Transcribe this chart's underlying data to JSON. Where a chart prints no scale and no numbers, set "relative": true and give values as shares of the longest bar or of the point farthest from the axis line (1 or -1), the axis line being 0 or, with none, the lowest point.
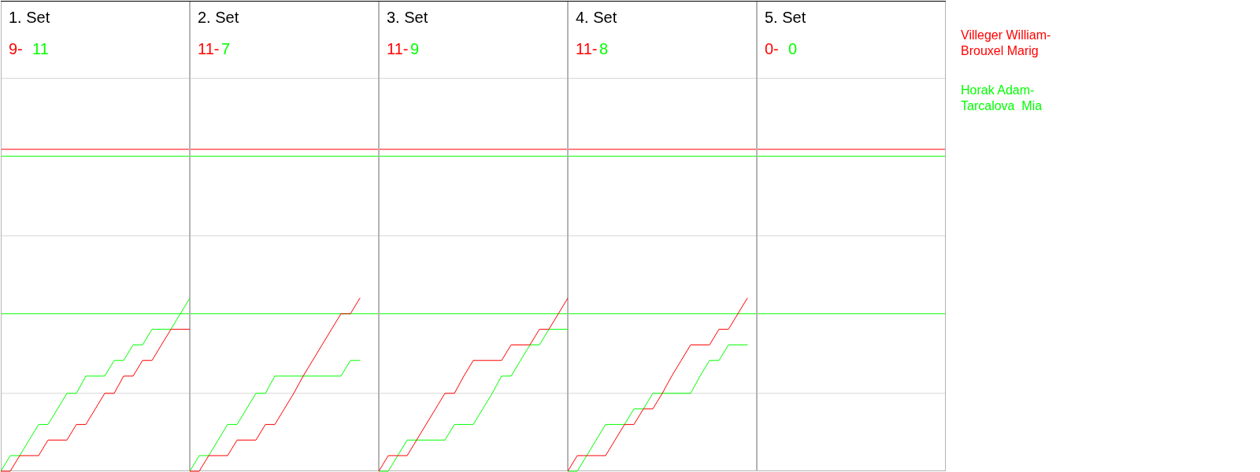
{
  "chart_data": [
    {
      "type": "line",
      "relative": true,
      "title": "1. Set",
      "annotations": [
        "9-",
        "11"
      ],
      "categories": [
        null,
        null,
        null,
        null,
        null,
        null,
        null,
        null,
        null,
        null,
        null,
        null,
        null,
        null,
        null,
        null,
        null,
        null,
        null,
        null,
        null
      ],
      "series": [
        {
          "color": "#ff0000",
          "values": [
            0,
            0,
            0.09,
            0.09,
            0.09,
            0.18,
            0.18,
            0.18,
            0.27,
            0.27,
            0.36,
            0.45,
            0.45,
            0.55,
            0.55,
            0.64,
            0.64,
            0.73,
            0.82,
            0.82,
            0.82
          ]
        },
        {
          "color": "#00ff00",
          "values": [
            0,
            0.09,
            0.09,
            0.18,
            0.27,
            0.27,
            0.36,
            0.45,
            0.45,
            0.55,
            0.55,
            0.55,
            0.64,
            0.64,
            0.73,
            0.73,
            0.82,
            0.82,
            0.82,
            0.91,
            1
          ]
        }
      ],
      "tick_labels": false,
      "ref_lines": [
        {
          "axis": "y",
          "value": 0.45,
          "color": "#d6d6d6"
        },
        {
          "axis": "y",
          "value": 1.36,
          "color": "#d6d6d6"
        },
        {
          "axis": "y",
          "value": 2.27,
          "color": "#d6d6d6"
        },
        {
          "axis": "y",
          "value": 1.86,
          "color": "#ff0000"
        },
        {
          "axis": "y",
          "value": 1.82,
          "color": "#00ff00"
        },
        {
          "axis": "y",
          "value": 0.91,
          "color": "#00ff00"
        }
      ]
    },
    {
      "type": "line",
      "relative": true,
      "title": "2. Set",
      "annotations": [
        "11-",
        "7"
      ],
      "categories": [
        null,
        null,
        null,
        null,
        null,
        null,
        null,
        null,
        null,
        null,
        null,
        null,
        null,
        null,
        null,
        null,
        null,
        null,
        null,
        null,
        null
      ],
      "series": [
        {
          "color": "#ff0000",
          "values": [
            0,
            0,
            0.09,
            0.09,
            0.09,
            0.18,
            0.18,
            0.18,
            0.27,
            0.27,
            0.36,
            0.45,
            0.55,
            0.64,
            0.73,
            0.82,
            0.91,
            0.91,
            1,
            null,
            null
          ]
        },
        {
          "color": "#00ff00",
          "values": [
            0,
            0.09,
            0.09,
            0.18,
            0.27,
            0.27,
            0.36,
            0.45,
            0.45,
            0.55,
            0.55,
            0.55,
            0.55,
            0.55,
            0.55,
            0.55,
            0.55,
            0.64,
            0.64,
            null,
            null
          ]
        }
      ],
      "tick_labels": false,
      "ref_lines": [
        {
          "axis": "y",
          "value": 0.45,
          "color": "#d6d6d6"
        },
        {
          "axis": "y",
          "value": 1.36,
          "color": "#d6d6d6"
        },
        {
          "axis": "y",
          "value": 2.27,
          "color": "#d6d6d6"
        },
        {
          "axis": "y",
          "value": 1.86,
          "color": "#ff0000"
        },
        {
          "axis": "y",
          "value": 1.82,
          "color": "#00ff00"
        },
        {
          "axis": "y",
          "value": 0.91,
          "color": "#00ff00"
        }
      ]
    },
    {
      "type": "line",
      "relative": true,
      "title": "3. Set",
      "annotations": [
        "11-",
        "9"
      ],
      "categories": [
        null,
        null,
        null,
        null,
        null,
        null,
        null,
        null,
        null,
        null,
        null,
        null,
        null,
        null,
        null,
        null,
        null,
        null,
        null,
        null,
        null
      ],
      "series": [
        {
          "color": "#ff0000",
          "values": [
            0,
            0.09,
            0.09,
            0.09,
            0.18,
            0.27,
            0.36,
            0.45,
            0.45,
            0.55,
            0.64,
            0.64,
            0.64,
            0.64,
            0.73,
            0.73,
            0.73,
            0.82,
            0.82,
            0.91,
            1
          ]
        },
        {
          "color": "#00ff00",
          "values": [
            0,
            0,
            0.09,
            0.18,
            0.18,
            0.18,
            0.18,
            0.18,
            0.27,
            0.27,
            0.27,
            0.36,
            0.45,
            0.55,
            0.55,
            0.64,
            0.73,
            0.73,
            0.82,
            0.82,
            0.82
          ]
        }
      ],
      "tick_labels": false,
      "ref_lines": [
        {
          "axis": "y",
          "value": 0.45,
          "color": "#d6d6d6"
        },
        {
          "axis": "y",
          "value": 1.36,
          "color": "#d6d6d6"
        },
        {
          "axis": "y",
          "value": 2.27,
          "color": "#d6d6d6"
        },
        {
          "axis": "y",
          "value": 1.86,
          "color": "#ff0000"
        },
        {
          "axis": "y",
          "value": 1.82,
          "color": "#00ff00"
        },
        {
          "axis": "y",
          "value": 0.91,
          "color": "#00ff00"
        }
      ]
    },
    {
      "type": "line",
      "relative": true,
      "title": "4. Set",
      "annotations": [
        "11-",
        "8"
      ],
      "categories": [
        null,
        null,
        null,
        null,
        null,
        null,
        null,
        null,
        null,
        null,
        null,
        null,
        null,
        null,
        null,
        null,
        null,
        null,
        null,
        null,
        null
      ],
      "series": [
        {
          "color": "#ff0000",
          "values": [
            0,
            0.09,
            0.09,
            0.09,
            0.09,
            0.18,
            0.27,
            0.27,
            0.36,
            0.36,
            0.45,
            0.55,
            0.64,
            0.73,
            0.73,
            0.73,
            0.82,
            0.82,
            0.91,
            1,
            null
          ]
        },
        {
          "color": "#00ff00",
          "values": [
            0,
            0,
            0.09,
            0.18,
            0.27,
            0.27,
            0.27,
            0.36,
            0.36,
            0.45,
            0.45,
            0.45,
            0.45,
            0.45,
            0.55,
            0.64,
            0.64,
            0.73,
            0.73,
            0.73,
            null
          ]
        }
      ],
      "tick_labels": false,
      "ref_lines": [
        {
          "axis": "y",
          "value": 0.45,
          "color": "#d6d6d6"
        },
        {
          "axis": "y",
          "value": 1.36,
          "color": "#d6d6d6"
        },
        {
          "axis": "y",
          "value": 2.27,
          "color": "#d6d6d6"
        },
        {
          "axis": "y",
          "value": 1.86,
          "color": "#ff0000"
        },
        {
          "axis": "y",
          "value": 1.82,
          "color": "#00ff00"
        },
        {
          "axis": "y",
          "value": 0.91,
          "color": "#00ff00"
        }
      ]
    },
    {
      "type": "other",
      "title": "5. Set",
      "annotations": [
        "0-",
        "0"
      ],
      "series": [
        {
          "name": "Villeger William-Brouxel Marig",
          "color": "#ff0000"
        },
        {
          "name": "Horak Adam-Tarcalova  Mia",
          "color": "#00ff00"
        }
      ]
    }
  ]
}
